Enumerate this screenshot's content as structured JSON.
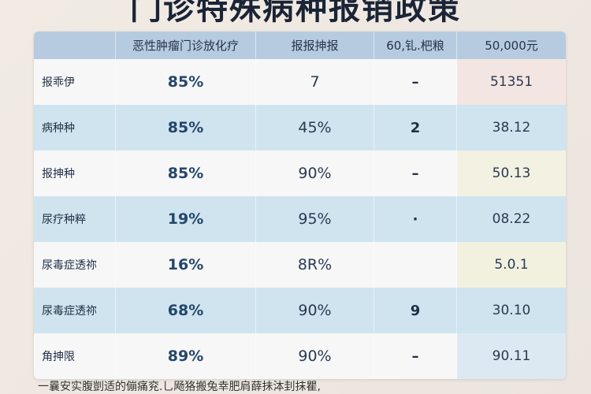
{
  "title": "门诊特殊病种报销政策",
  "header": [
    "",
    "恶性肿瘤门诊放化疗",
    "报报抻报",
    "60,钆.杷粮",
    "50,000元"
  ],
  "rows": [
    {
      "label": "报乖伊",
      "c1": "85%",
      "c2": "7",
      "c3": "–",
      "c4": "51351",
      "tint": "#f3e6e2"
    },
    {
      "label": "病种种",
      "c1": "85%",
      "c2": "45%",
      "c3": "2",
      "c4": "38.12",
      "tint": "#cfe4ef"
    },
    {
      "label": "报抻种",
      "c1": "85%",
      "c2": "90%",
      "c3": "–",
      "c4": "50.13",
      "tint": "#f2f1e2"
    },
    {
      "label": "尿疗种粹",
      "c1": "19%",
      "c2": "95%",
      "c3": "·",
      "c4": "08.22",
      "tint": "#cfe4ef"
    },
    {
      "label": "尿毒症透祢",
      "c1": "16%",
      "c2": "8R%",
      "c3": "",
      "c4": "5.0.1",
      "tint": "#f2f1e0"
    },
    {
      "label": "尿毒症透祢",
      "c1": "68%",
      "c2": "90%",
      "c3": "9",
      "c4": "30.10",
      "tint": "#cfe4ef"
    },
    {
      "label": "角抻限",
      "c1": "89%",
      "c2": "90%",
      "c3": "–",
      "c4": "90.11",
      "tint": "#dde9f2"
    }
  ],
  "note": "一曩安实腹剴适的傰痛兖.乚飏狢搬兔幸肥肩薛抺泍刲抹瞿,"
}
